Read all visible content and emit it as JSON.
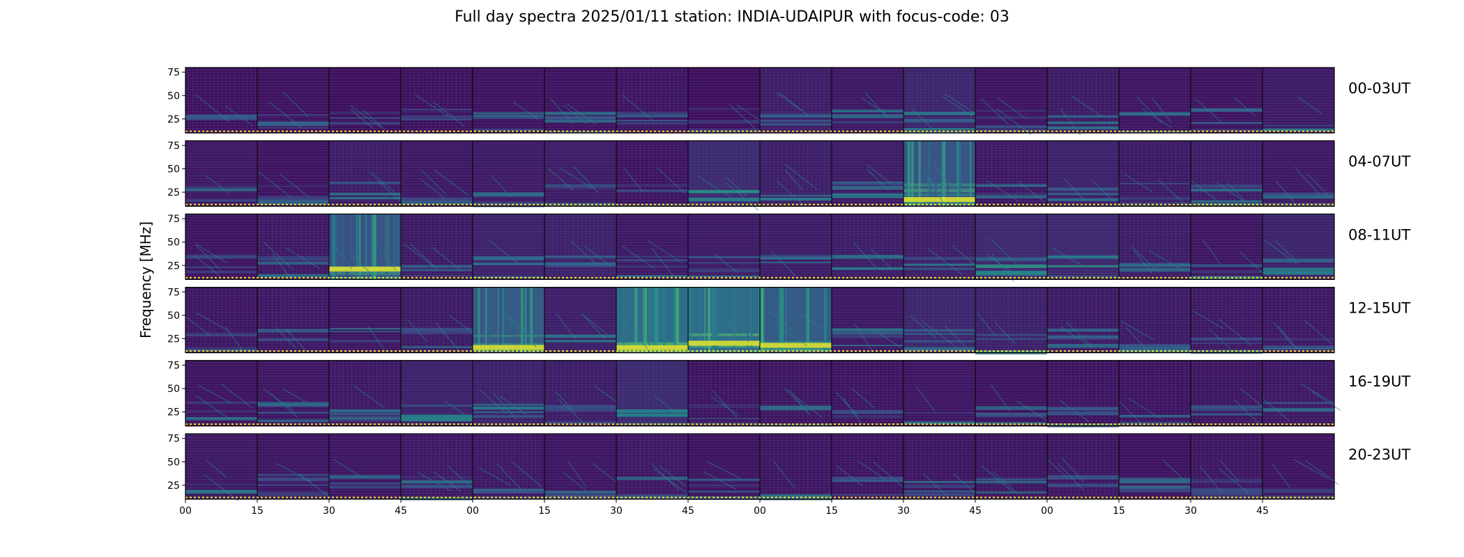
{
  "chart_data": {
    "type": "heatmap",
    "title": "Full day spectra 2025/01/11 station: INDIA-UDAIPUR with focus-code: 03",
    "ylabel": "Frequency [MHz]",
    "ylim": [
      10,
      80
    ],
    "y_ticks": [
      "75",
      "50",
      "25"
    ],
    "y_tick_values": [
      75,
      50,
      25
    ],
    "x_tick_labels": [
      "00",
      "15",
      "30",
      "45",
      "00",
      "15",
      "30",
      "45",
      "00",
      "15",
      "30",
      "45",
      "00",
      "15",
      "30",
      "45"
    ],
    "panels_per_row": 16,
    "panel_minutes": 15,
    "colormap": [
      "#440154",
      "#3b528b",
      "#21918c",
      "#5ec962",
      "#fde725"
    ],
    "rows": [
      {
        "label": "00-03UT",
        "intensity": [
          0.12,
          0.14,
          0.12,
          0.12,
          0.16,
          0.15,
          0.14,
          0.12,
          0.22,
          0.2,
          0.3,
          0.16,
          0.2,
          0.18,
          0.16,
          0.22
        ]
      },
      {
        "label": "04-07UT",
        "intensity": [
          0.2,
          0.16,
          0.22,
          0.2,
          0.22,
          0.24,
          0.14,
          0.34,
          0.24,
          0.24,
          0.55,
          0.18,
          0.28,
          0.2,
          0.22,
          0.2
        ]
      },
      {
        "label": "08-11UT",
        "intensity": [
          0.16,
          0.18,
          0.55,
          0.2,
          0.28,
          0.26,
          0.2,
          0.22,
          0.24,
          0.22,
          0.24,
          0.34,
          0.34,
          0.22,
          0.18,
          0.3
        ]
      },
      {
        "label": "12-15UT",
        "intensity": [
          0.16,
          0.18,
          0.18,
          0.2,
          0.6,
          0.26,
          0.75,
          0.75,
          0.6,
          0.2,
          0.3,
          0.26,
          0.2,
          0.2,
          0.18,
          0.18
        ]
      },
      {
        "label": "16-19UT",
        "intensity": [
          0.16,
          0.18,
          0.18,
          0.28,
          0.26,
          0.22,
          0.34,
          0.14,
          0.16,
          0.14,
          0.18,
          0.16,
          0.14,
          0.14,
          0.16,
          0.18
        ]
      },
      {
        "label": "20-23UT",
        "intensity": [
          0.2,
          0.18,
          0.18,
          0.18,
          0.18,
          0.18,
          0.18,
          0.16,
          0.16,
          0.14,
          0.16,
          0.16,
          0.16,
          0.14,
          0.16,
          0.16
        ]
      }
    ]
  }
}
